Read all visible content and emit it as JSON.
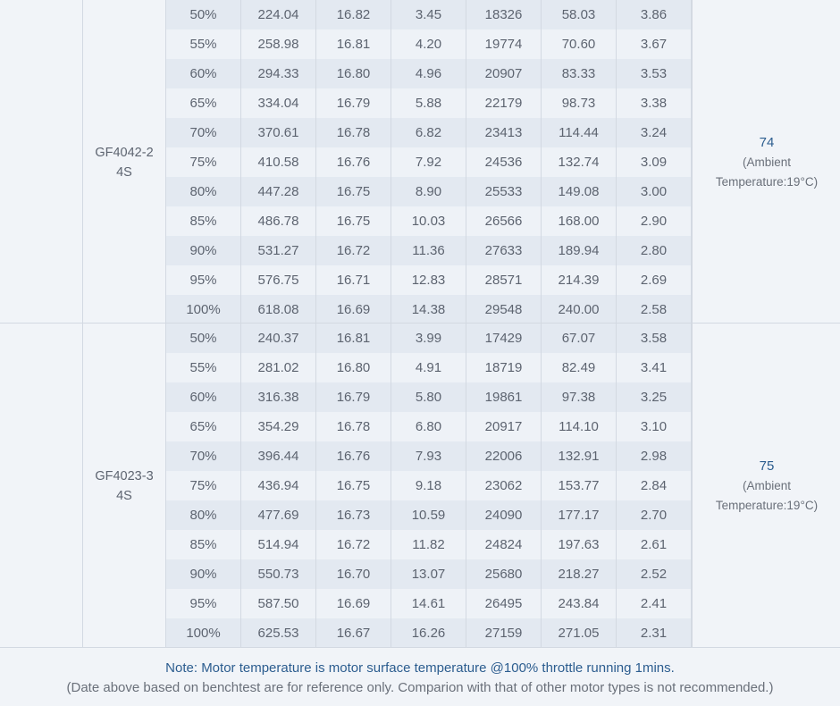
{
  "groups": [
    {
      "motor_line1": "GF4042-2",
      "motor_line2": "4S",
      "temperature": "74",
      "temp_note_line1": "(Ambient",
      "temp_note_line2": "Temperature:19°C)",
      "rows": [
        [
          "50%",
          "224.04",
          "16.82",
          "3.45",
          "18326",
          "58.03",
          "3.86"
        ],
        [
          "55%",
          "258.98",
          "16.81",
          "4.20",
          "19774",
          "70.60",
          "3.67"
        ],
        [
          "60%",
          "294.33",
          "16.80",
          "4.96",
          "20907",
          "83.33",
          "3.53"
        ],
        [
          "65%",
          "334.04",
          "16.79",
          "5.88",
          "22179",
          "98.73",
          "3.38"
        ],
        [
          "70%",
          "370.61",
          "16.78",
          "6.82",
          "23413",
          "114.44",
          "3.24"
        ],
        [
          "75%",
          "410.58",
          "16.76",
          "7.92",
          "24536",
          "132.74",
          "3.09"
        ],
        [
          "80%",
          "447.28",
          "16.75",
          "8.90",
          "25533",
          "149.08",
          "3.00"
        ],
        [
          "85%",
          "486.78",
          "16.75",
          "10.03",
          "26566",
          "168.00",
          "2.90"
        ],
        [
          "90%",
          "531.27",
          "16.72",
          "11.36",
          "27633",
          "189.94",
          "2.80"
        ],
        [
          "95%",
          "576.75",
          "16.71",
          "12.83",
          "28571",
          "214.39",
          "2.69"
        ],
        [
          "100%",
          "618.08",
          "16.69",
          "14.38",
          "29548",
          "240.00",
          "2.58"
        ]
      ]
    },
    {
      "motor_line1": "GF4023-3",
      "motor_line2": "4S",
      "temperature": "75",
      "temp_note_line1": "(Ambient",
      "temp_note_line2": "Temperature:19°C)",
      "rows": [
        [
          "50%",
          "240.37",
          "16.81",
          "3.99",
          "17429",
          "67.07",
          "3.58"
        ],
        [
          "55%",
          "281.02",
          "16.80",
          "4.91",
          "18719",
          "82.49",
          "3.41"
        ],
        [
          "60%",
          "316.38",
          "16.79",
          "5.80",
          "19861",
          "97.38",
          "3.25"
        ],
        [
          "65%",
          "354.29",
          "16.78",
          "6.80",
          "20917",
          "114.10",
          "3.10"
        ],
        [
          "70%",
          "396.44",
          "16.76",
          "7.93",
          "22006",
          "132.91",
          "2.98"
        ],
        [
          "75%",
          "436.94",
          "16.75",
          "9.18",
          "23062",
          "153.77",
          "2.84"
        ],
        [
          "80%",
          "477.69",
          "16.73",
          "10.59",
          "24090",
          "177.17",
          "2.70"
        ],
        [
          "85%",
          "514.94",
          "16.72",
          "11.82",
          "24824",
          "197.63",
          "2.61"
        ],
        [
          "90%",
          "550.73",
          "16.70",
          "13.07",
          "25680",
          "218.27",
          "2.52"
        ],
        [
          "95%",
          "587.50",
          "16.69",
          "14.61",
          "26495",
          "243.84",
          "2.41"
        ],
        [
          "100%",
          "625.53",
          "16.67",
          "16.26",
          "27159",
          "271.05",
          "2.31"
        ]
      ]
    }
  ],
  "footer": {
    "note": "Note: Motor temperature is motor surface temperature @100% throttle running 1mins.",
    "disclaimer": "(Date above based on benchtest are for reference only. Comparion with that of other motor types is not recommended.)"
  },
  "colors": {
    "accent": "#2c5d8f",
    "row_alt": "#e3e9f1",
    "row_plain": "#eef2f7",
    "border": "#d3d9e2"
  }
}
